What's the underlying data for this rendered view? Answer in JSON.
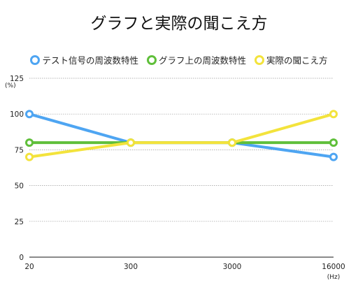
{
  "chart_data": {
    "type": "line",
    "title": "グラフと実際の聞こえ方",
    "categories": [
      "20",
      "300",
      "3000",
      "16000"
    ],
    "x_unit": "(Hz)",
    "y_unit": "(%)",
    "ylim": [
      0,
      125
    ],
    "y_ticks": [
      0,
      25,
      50,
      75,
      100,
      125
    ],
    "grid": true,
    "legend_position": "top",
    "series": [
      {
        "name": "テスト信号の周波数特性",
        "color": "#4ea5f2",
        "values": [
          100,
          80,
          80,
          70
        ]
      },
      {
        "name": "グラフ上の周波数特性",
        "color": "#5fbf3a",
        "values": [
          80,
          80,
          80,
          80
        ]
      },
      {
        "name": "実際の聞こえ方",
        "color": "#f3e33c",
        "values": [
          70,
          80,
          80,
          100
        ]
      }
    ]
  }
}
